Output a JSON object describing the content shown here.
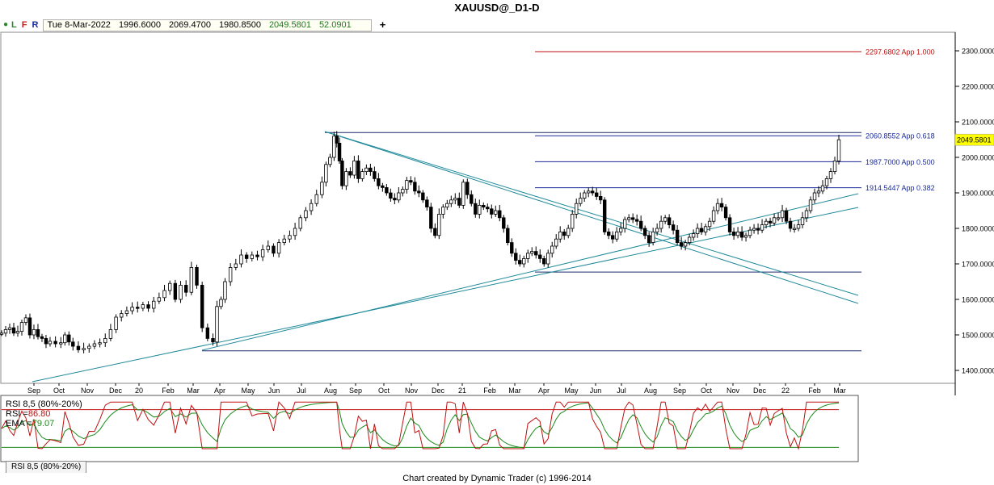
{
  "window": {
    "title": "XAUUSD@_D1-D"
  },
  "toolbar": {
    "l_label": "L",
    "f_label": "F",
    "r_label": "R",
    "date": "Tue 8-Mar-2022",
    "open": "1996.6000",
    "high": "2069.4700",
    "low": "1980.8500",
    "close": "2049.5801",
    "change": "52.0901",
    "add_label": "+"
  },
  "rsi_panel": {
    "legend_title": "RSI 8,5 (80%-20%)",
    "rsi_label": "RSI =",
    "rsi_value": "86.80",
    "ema_label": "EMA =",
    "ema_value": "79.07",
    "tab_label": "RSI 8,5 (80%-20%)"
  },
  "footer": {
    "text": "Chart created by Dynamic Trader  (c) 1996-2014"
  },
  "chart_data": {
    "type": "candlestick",
    "symbol": "XAUUSD@_D1-D",
    "ylim": [
      1370,
      2330
    ],
    "y_ticks": [
      "2300.0000",
      "2200.0000",
      "2100.0000",
      "2000.0000",
      "1900.0000",
      "1800.0000",
      "1700.0000",
      "1600.0000",
      "1500.0000",
      "1400.0000"
    ],
    "x_tick_labels": [
      "Sep",
      "Oct",
      "Nov",
      "Dec",
      "20",
      "Feb",
      "Mar",
      "Apr",
      "May",
      "Jun",
      "Jul",
      "Aug",
      "Sep",
      "Oct",
      "Nov",
      "Dec",
      "21",
      "Feb",
      "Mar",
      "Apr",
      "May",
      "Jun",
      "Jul",
      "Aug",
      "Sep",
      "Oct",
      "Nov",
      "Dec",
      "22",
      "Feb",
      "Mar"
    ],
    "last_price_label": "2049.5801",
    "fib_levels": [
      {
        "text": "2297.6802 App 1.000",
        "value": 2297.68,
        "color": "#c01010"
      },
      {
        "text": "2060.8552 App 0.618",
        "value": 2060.86,
        "color": "#1a2a9a"
      },
      {
        "text": "1987.7000 App 0.500",
        "value": 1987.7,
        "color": "#1a2a9a"
      },
      {
        "text": "1914.5447 App 0.382",
        "value": 1914.54,
        "color": "#1a2a9a"
      }
    ],
    "horizontal_levels": [
      2070,
      1677,
      1455
    ],
    "price_path": [
      [
        0,
        1505
      ],
      [
        3,
        1515
      ],
      [
        6,
        1520
      ],
      [
        9,
        1505
      ],
      [
        12,
        1510
      ],
      [
        15,
        1535
      ],
      [
        18,
        1548
      ],
      [
        21,
        1500
      ],
      [
        24,
        1515
      ],
      [
        27,
        1495
      ],
      [
        30,
        1490
      ],
      [
        33,
        1475
      ],
      [
        36,
        1482
      ],
      [
        40,
        1475
      ],
      [
        44,
        1478
      ],
      [
        47,
        1500
      ],
      [
        50,
        1480
      ],
      [
        53,
        1468
      ],
      [
        57,
        1458
      ],
      [
        61,
        1462
      ],
      [
        65,
        1468
      ],
      [
        69,
        1475
      ],
      [
        73,
        1478
      ],
      [
        77,
        1490
      ],
      [
        81,
        1515
      ],
      [
        85,
        1550
      ],
      [
        89,
        1560
      ],
      [
        93,
        1568
      ],
      [
        97,
        1578
      ],
      [
        101,
        1575
      ],
      [
        105,
        1585
      ],
      [
        109,
        1575
      ],
      [
        113,
        1595
      ],
      [
        117,
        1605
      ],
      [
        121,
        1625
      ],
      [
        125,
        1645
      ],
      [
        129,
        1600
      ],
      [
        133,
        1640
      ],
      [
        137,
        1620
      ],
      [
        141,
        1690
      ],
      [
        145,
        1640
      ],
      [
        149,
        1520
      ],
      [
        153,
        1490
      ],
      [
        157,
        1480
      ],
      [
        160,
        1580
      ],
      [
        163,
        1600
      ],
      [
        166,
        1650
      ],
      [
        170,
        1690
      ],
      [
        174,
        1700
      ],
      [
        178,
        1725
      ],
      [
        182,
        1715
      ],
      [
        186,
        1725
      ],
      [
        190,
        1720
      ],
      [
        194,
        1740
      ],
      [
        198,
        1750
      ],
      [
        202,
        1730
      ],
      [
        206,
        1760
      ],
      [
        210,
        1770
      ],
      [
        214,
        1780
      ],
      [
        218,
        1800
      ],
      [
        222,
        1830
      ],
      [
        226,
        1850
      ],
      [
        230,
        1870
      ],
      [
        234,
        1895
      ],
      [
        238,
        1930
      ],
      [
        241,
        1980
      ],
      [
        244,
        2000
      ],
      [
        247,
        2060
      ],
      [
        249,
        2040
      ],
      [
        251,
        1990
      ],
      [
        253,
        1920
      ],
      [
        256,
        1960
      ],
      [
        259,
        1950
      ],
      [
        262,
        1990
      ],
      [
        265,
        1940
      ],
      [
        268,
        1960
      ],
      [
        271,
        1970
      ],
      [
        274,
        1960
      ],
      [
        277,
        1940
      ],
      [
        280,
        1920
      ],
      [
        283,
        1915
      ],
      [
        286,
        1900
      ],
      [
        289,
        1885
      ],
      [
        292,
        1880
      ],
      [
        295,
        1900
      ],
      [
        298,
        1910
      ],
      [
        301,
        1935
      ],
      [
        304,
        1930
      ],
      [
        307,
        1905
      ],
      [
        310,
        1900
      ],
      [
        313,
        1880
      ],
      [
        316,
        1860
      ],
      [
        319,
        1800
      ],
      [
        322,
        1780
      ],
      [
        325,
        1840
      ],
      [
        328,
        1860
      ],
      [
        331,
        1870
      ],
      [
        334,
        1880
      ],
      [
        337,
        1885
      ],
      [
        340,
        1865
      ],
      [
        343,
        1930
      ],
      [
        346,
        1895
      ],
      [
        349,
        1870
      ],
      [
        352,
        1840
      ],
      [
        355,
        1865
      ],
      [
        358,
        1860
      ],
      [
        361,
        1855
      ],
      [
        364,
        1840
      ],
      [
        367,
        1850
      ],
      [
        370,
        1830
      ],
      [
        373,
        1800
      ],
      [
        376,
        1760
      ],
      [
        379,
        1730
      ],
      [
        382,
        1710
      ],
      [
        385,
        1700
      ],
      [
        388,
        1715
      ],
      [
        391,
        1730
      ],
      [
        394,
        1735
      ],
      [
        397,
        1725
      ],
      [
        400,
        1715
      ],
      [
        403,
        1700
      ],
      [
        406,
        1730
      ],
      [
        409,
        1750
      ],
      [
        412,
        1770
      ],
      [
        415,
        1790
      ],
      [
        418,
        1780
      ],
      [
        421,
        1800
      ],
      [
        424,
        1840
      ],
      [
        427,
        1870
      ],
      [
        430,
        1885
      ],
      [
        433,
        1900
      ],
      [
        436,
        1905
      ],
      [
        439,
        1900
      ],
      [
        442,
        1890
      ],
      [
        445,
        1880
      ],
      [
        448,
        1790
      ],
      [
        451,
        1780
      ],
      [
        454,
        1770
      ],
      [
        457,
        1790
      ],
      [
        460,
        1800
      ],
      [
        463,
        1825
      ],
      [
        466,
        1830
      ],
      [
        469,
        1825
      ],
      [
        472,
        1820
      ],
      [
        475,
        1800
      ],
      [
        478,
        1780
      ],
      [
        481,
        1760
      ],
      [
        484,
        1790
      ],
      [
        487,
        1800
      ],
      [
        490,
        1820
      ],
      [
        493,
        1830
      ],
      [
        496,
        1810
      ],
      [
        499,
        1795
      ],
      [
        502,
        1760
      ],
      [
        505,
        1750
      ],
      [
        508,
        1760
      ],
      [
        511,
        1775
      ],
      [
        514,
        1785
      ],
      [
        517,
        1800
      ],
      [
        520,
        1790
      ],
      [
        523,
        1805
      ],
      [
        526,
        1820
      ],
      [
        529,
        1850
      ],
      [
        532,
        1870
      ],
      [
        535,
        1860
      ],
      [
        538,
        1830
      ],
      [
        541,
        1790
      ],
      [
        544,
        1780
      ],
      [
        547,
        1790
      ],
      [
        550,
        1775
      ],
      [
        553,
        1780
      ],
      [
        556,
        1795
      ],
      [
        559,
        1800
      ],
      [
        562,
        1795
      ],
      [
        565,
        1810
      ],
      [
        568,
        1820
      ],
      [
        571,
        1815
      ],
      [
        574,
        1830
      ],
      [
        577,
        1830
      ],
      [
        580,
        1850
      ],
      [
        583,
        1820
      ],
      [
        586,
        1800
      ],
      [
        589,
        1800
      ],
      [
        592,
        1810
      ],
      [
        595,
        1830
      ],
      [
        598,
        1850
      ],
      [
        601,
        1880
      ],
      [
        604,
        1900
      ],
      [
        607,
        1905
      ],
      [
        610,
        1920
      ],
      [
        613,
        1940
      ],
      [
        616,
        1960
      ],
      [
        619,
        1990
      ],
      [
        622,
        2049.58
      ]
    ],
    "trendlines": [
      [
        [
          0,
          1445
        ],
        [
          247,
          2070
        ],
        [
          480,
          1620
        ]
      ],
      [
        [
          0,
          1435
        ],
        [
          247,
          2060
        ],
        [
          480,
          1590
        ]
      ]
    ],
    "support_lines": [
      [
        [
          5,
          1365
        ],
        [
          480,
          1910
        ]
      ],
      [
        [
          5,
          1355
        ],
        [
          480,
          1855
        ]
      ]
    ],
    "rsi_upper": 80,
    "rsi_lower": 20
  }
}
